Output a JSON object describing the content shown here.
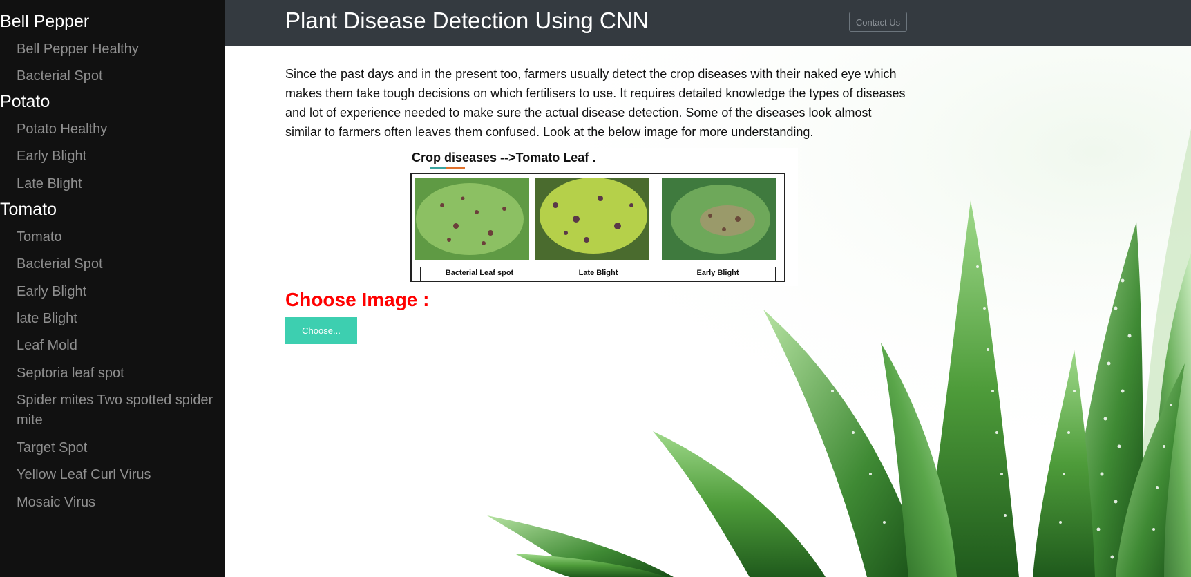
{
  "sidebar": {
    "groups": [
      {
        "title": "Bell Pepper",
        "items": [
          "Bell Pepper Healthy",
          "Bacterial Spot"
        ]
      },
      {
        "title": "Potato",
        "items": [
          "Potato Healthy",
          "Early Blight",
          "Late Blight"
        ]
      },
      {
        "title": "Tomato",
        "items": [
          "Tomato",
          "Bacterial Spot",
          "Early Blight",
          "late Blight",
          "Leaf Mold",
          "Septoria leaf spot",
          "Spider mites Two spotted spider mite",
          "Target Spot",
          "Yellow Leaf Curl Virus",
          "Mosaic Virus"
        ]
      }
    ]
  },
  "header": {
    "title": "Plant Disease Detection Using CNN",
    "contact_label": "Contact Us"
  },
  "main": {
    "intro": "Since the past days and in the present too, farmers usually detect the crop diseases with their naked eye which makes them take tough decisions on which fertilisers to use. It requires detailed knowledge the types of diseases and lot of experience needed to make sure the actual disease detection. Some of the diseases look almost similar to farmers often leaves them confused. Look at the below image for more understanding.",
    "figure": {
      "title": "Crop diseases -->Tomato Leaf .",
      "captions": [
        "Bacterial Leaf spot",
        "Late Blight",
        "Early Blight"
      ]
    },
    "choose_heading": "Choose Image :",
    "choose_button": "Choose..."
  },
  "colors": {
    "sidebar_bg": "#111111",
    "header_bg": "#343a40",
    "heading_red": "#ff0000",
    "button_teal": "#3dcfb0"
  }
}
